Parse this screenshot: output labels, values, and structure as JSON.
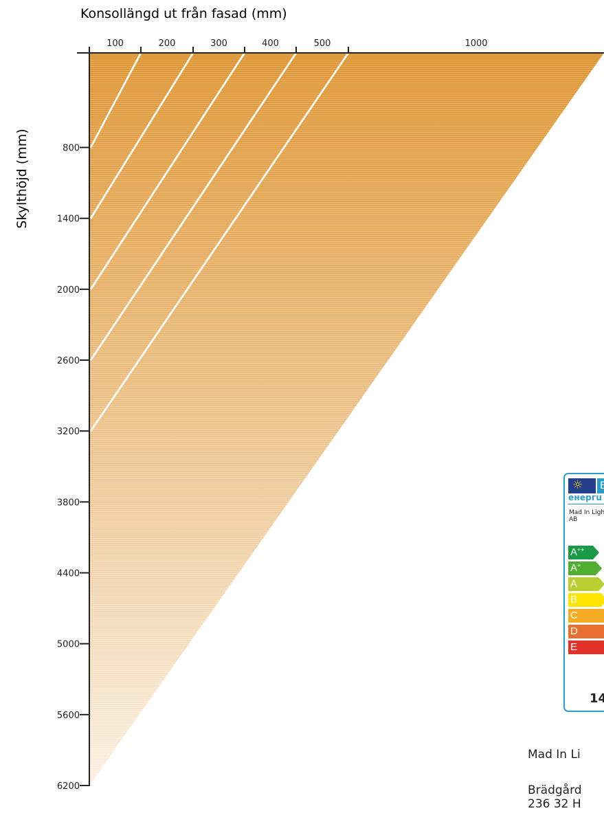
{
  "chart_data": {
    "type": "area",
    "title": "",
    "xlabel": "Konsollängd ut från fasad (mm)",
    "ylabel": "Skylthöjd (mm)",
    "x_tick_labels": [
      "100",
      "200",
      "300",
      "400",
      "500",
      "1000"
    ],
    "y_tick_labels": [
      "800",
      "1400",
      "2000",
      "2600",
      "3200",
      "3800",
      "4400",
      "5000",
      "5600",
      "6200"
    ],
    "ylim": [
      0,
      6200
    ],
    "y_axis_inverted": true,
    "fill_gradient": [
      "#de9634",
      "#faf0e2"
    ],
    "limit_lines": [
      {
        "konsol_mm": 100,
        "skylthojd_mm": 800
      },
      {
        "konsol_mm": 200,
        "skylthojd_mm": 1400
      },
      {
        "konsol_mm": 300,
        "skylthojd_mm": 2000
      },
      {
        "konsol_mm": 400,
        "skylthojd_mm": 2600
      },
      {
        "konsol_mm": 500,
        "skylthojd_mm": 3200
      }
    ],
    "grid": false,
    "legend": "none"
  },
  "energy_label": {
    "flag_icon": "eu-flag-icon",
    "energy_word": "енергu",
    "manufacturer": "Mad In Light AB",
    "classes": [
      {
        "main": "A",
        "sup": "++",
        "color": "#1a9a46"
      },
      {
        "main": "A",
        "sup": "+",
        "color": "#52ae32"
      },
      {
        "main": "A",
        "sup": "",
        "color": "#b9cf31"
      },
      {
        "main": "B",
        "sup": "",
        "color": "#fde500"
      },
      {
        "main": "C",
        "sup": "",
        "color": "#f6ab24"
      },
      {
        "main": "D",
        "sup": "",
        "color": "#e97030"
      },
      {
        "main": "E",
        "sup": "",
        "color": "#e0322b"
      }
    ],
    "number": "14",
    "border_color": "#2c9cc8"
  },
  "footer": {
    "company": "Mad In Li",
    "address_line1": "Brädgård",
    "address_line2": "236 32 H"
  }
}
